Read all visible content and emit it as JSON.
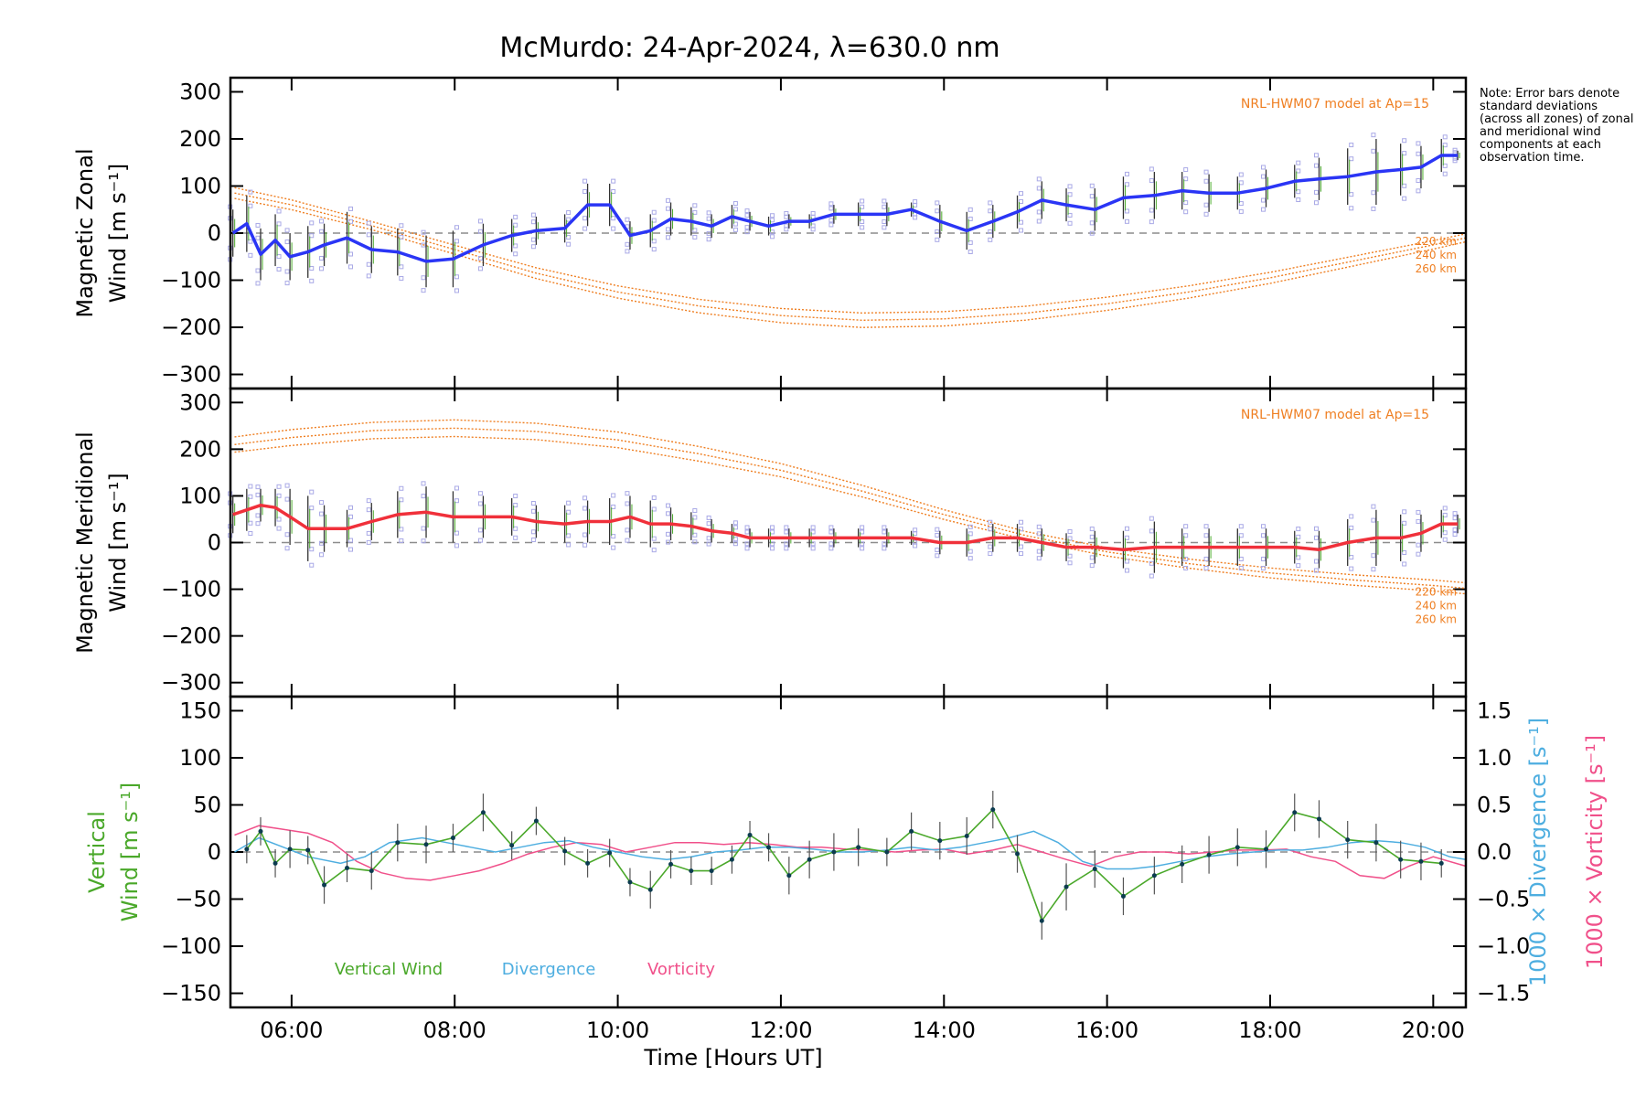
{
  "title": "McMurdo: 24-Apr-2024, λ=630.0 nm",
  "note": "Note: Error bars denote standard deviations (across all zones) of zonal and meridional wind components at each observation time.",
  "colors": {
    "zonal": "#2a35f5",
    "meridional": "#f0303a",
    "model": "#ef7f22",
    "vertical": "#4aa82a",
    "divergence": "#4eaee0",
    "vorticity": "#f0508a",
    "zone_squares": "#a9a9e6",
    "zero_line": "#8c8c8c"
  },
  "x_axis": {
    "label": "Time [Hours UT]",
    "range": [
      5.25,
      20.4
    ],
    "ticks": [
      {
        "v": 6,
        "label": "06:00"
      },
      {
        "v": 8,
        "label": "08:00"
      },
      {
        "v": 10,
        "label": "10:00"
      },
      {
        "v": 12,
        "label": "12:00"
      },
      {
        "v": 14,
        "label": "14:00"
      },
      {
        "v": 16,
        "label": "16:00"
      },
      {
        "v": 18,
        "label": "18:00"
      },
      {
        "v": 20,
        "label": "20:00"
      }
    ]
  },
  "chart_data": [
    {
      "id": "zonal",
      "type": "line",
      "ylabel_line1": "Magnetic Zonal",
      "ylabel_line2": "Wind [m s⁻¹]",
      "ylim": [
        -330,
        330
      ],
      "yticks": [
        300,
        200,
        100,
        0,
        -100,
        -200,
        -300
      ],
      "yticklabels": [
        "300",
        "200",
        "100",
        "0",
        "−100",
        "−200",
        "−300"
      ],
      "model_label": "NRL-HWM07 model at Ap=15",
      "model_altitudes": [
        "220 km",
        "240 km",
        "260 km"
      ],
      "series": [
        {
          "kind": "observed",
          "x": [
            5.28,
            5.45,
            5.62,
            5.8,
            5.98,
            6.2,
            6.4,
            6.68,
            6.98,
            7.3,
            7.65,
            7.98,
            8.35,
            8.7,
            9.0,
            9.35,
            9.63,
            9.9,
            10.15,
            10.4,
            10.65,
            10.9,
            11.15,
            11.4,
            11.62,
            11.85,
            12.1,
            12.35,
            12.65,
            12.95,
            13.3,
            13.6,
            13.95,
            14.28,
            14.6,
            14.9,
            15.2,
            15.5,
            15.85,
            16.2,
            16.58,
            16.92,
            17.25,
            17.6,
            17.95,
            18.3,
            18.6,
            18.95,
            19.3,
            19.6,
            19.85,
            20.1,
            20.3
          ],
          "y": [
            0,
            20,
            -45,
            -15,
            -50,
            -40,
            -25,
            -10,
            -35,
            -40,
            -60,
            -55,
            -25,
            -5,
            5,
            10,
            60,
            60,
            -5,
            5,
            30,
            25,
            15,
            35,
            25,
            15,
            25,
            25,
            40,
            40,
            40,
            50,
            25,
            5,
            25,
            45,
            70,
            60,
            50,
            75,
            80,
            90,
            85,
            85,
            95,
            110,
            115,
            120,
            130,
            135,
            140,
            165,
            165
          ],
          "err": [
            50,
            60,
            55,
            55,
            50,
            55,
            45,
            55,
            50,
            50,
            55,
            60,
            45,
            35,
            30,
            30,
            45,
            45,
            30,
            35,
            35,
            30,
            25,
            25,
            20,
            20,
            15,
            15,
            20,
            25,
            25,
            15,
            35,
            40,
            35,
            35,
            40,
            35,
            45,
            45,
            50,
            40,
            40,
            35,
            40,
            35,
            45,
            60,
            70,
            55,
            45,
            35,
            10
          ]
        },
        {
          "kind": "model",
          "x": [
            5.3,
            6.0,
            7.0,
            8.0,
            9.0,
            10.0,
            11.0,
            12.0,
            13.0,
            14.0,
            15.0,
            16.0,
            17.0,
            18.0,
            19.0,
            20.0,
            20.4
          ],
          "y": [
            85,
            60,
            15,
            -35,
            -85,
            -125,
            -155,
            -175,
            -185,
            -182,
            -170,
            -150,
            -125,
            -95,
            -60,
            -25,
            -10
          ]
        }
      ]
    },
    {
      "id": "meridional",
      "type": "line",
      "ylabel_line1": "Magnetic Meridional",
      "ylabel_line2": "Wind [m s⁻¹]",
      "ylim": [
        -330,
        330
      ],
      "yticks": [
        300,
        200,
        100,
        0,
        -100,
        -200,
        -300
      ],
      "yticklabels": [
        "300",
        "200",
        "100",
        "0",
        "−100",
        "−200",
        "−300"
      ],
      "model_label": "NRL-HWM07 model at Ap=15",
      "model_altitudes": [
        "220 km",
        "240 km",
        "260 km"
      ],
      "series": [
        {
          "kind": "observed",
          "x": [
            5.28,
            5.45,
            5.62,
            5.8,
            5.98,
            6.2,
            6.4,
            6.68,
            6.98,
            7.3,
            7.65,
            7.98,
            8.35,
            8.7,
            9.0,
            9.35,
            9.63,
            9.9,
            10.15,
            10.4,
            10.65,
            10.9,
            11.15,
            11.4,
            11.62,
            11.85,
            12.1,
            12.35,
            12.65,
            12.95,
            13.3,
            13.6,
            13.95,
            14.28,
            14.6,
            14.9,
            15.2,
            15.5,
            15.85,
            16.2,
            16.58,
            16.92,
            17.25,
            17.6,
            17.95,
            18.3,
            18.6,
            18.95,
            19.3,
            19.6,
            19.85,
            20.1,
            20.3
          ],
          "y": [
            60,
            70,
            80,
            75,
            55,
            30,
            30,
            30,
            45,
            60,
            65,
            55,
            55,
            55,
            45,
            40,
            45,
            45,
            55,
            40,
            40,
            35,
            25,
            20,
            10,
            10,
            10,
            10,
            10,
            10,
            10,
            10,
            0,
            0,
            10,
            10,
            0,
            -10,
            -10,
            -15,
            -10,
            -10,
            -10,
            -10,
            -10,
            -10,
            -15,
            0,
            10,
            10,
            20,
            40,
            40
          ],
          "err": [
            40,
            45,
            35,
            40,
            60,
            70,
            50,
            40,
            40,
            50,
            55,
            55,
            45,
            40,
            35,
            40,
            45,
            50,
            45,
            50,
            35,
            30,
            25,
            20,
            20,
            20,
            20,
            20,
            20,
            20,
            20,
            15,
            25,
            30,
            30,
            30,
            30,
            30,
            35,
            40,
            55,
            40,
            40,
            40,
            40,
            35,
            40,
            50,
            60,
            50,
            40,
            30,
            20
          ]
        },
        {
          "kind": "model",
          "x": [
            5.3,
            6.0,
            7.0,
            8.0,
            9.0,
            10.0,
            11.0,
            12.0,
            13.0,
            14.0,
            15.0,
            16.0,
            17.0,
            18.0,
            19.0,
            20.0,
            20.4
          ],
          "y": [
            210,
            225,
            240,
            245,
            238,
            220,
            190,
            155,
            110,
            60,
            15,
            -20,
            -45,
            -65,
            -80,
            -92,
            -98
          ]
        }
      ]
    },
    {
      "id": "vertical",
      "type": "line",
      "ylabel_line1": "Vertical",
      "ylabel_line2": "Wind [m s⁻¹]",
      "ylim": [
        -165,
        165
      ],
      "yticks": [
        150,
        100,
        50,
        0,
        -50,
        -100,
        -150
      ],
      "yticklabels": [
        "150",
        "100",
        "50",
        "0",
        "−50",
        "−100",
        "−150"
      ],
      "y2label_divergence": "1000 × Divergence [s⁻¹]",
      "y2label_vorticity": "1000 × Vorticity [s⁻¹]",
      "y2ticks": [
        1.5,
        1.0,
        0.5,
        0.0,
        -0.5,
        -1.0,
        -1.5
      ],
      "y2ticklabels": [
        "1.5",
        "1.0",
        "0.5",
        "0.0",
        "−0.5",
        "−1.0",
        "−1.5"
      ],
      "legend": [
        "Vertical Wind",
        "Divergence",
        "Vorticity"
      ],
      "series": [
        {
          "name": "Vertical Wind",
          "x": [
            5.45,
            5.62,
            5.8,
            5.98,
            6.2,
            6.4,
            6.68,
            6.98,
            7.3,
            7.65,
            7.98,
            8.35,
            8.7,
            9.0,
            9.35,
            9.63,
            9.9,
            10.15,
            10.4,
            10.65,
            10.9,
            11.15,
            11.4,
            11.62,
            11.85,
            12.1,
            12.35,
            12.65,
            12.95,
            13.3,
            13.6,
            13.95,
            14.28,
            14.6,
            14.9,
            15.2,
            15.5,
            15.85,
            16.2,
            16.58,
            16.92,
            17.25,
            17.6,
            17.95,
            18.3,
            18.6,
            18.95,
            19.3,
            19.6,
            19.85,
            20.1
          ],
          "y": [
            3,
            22,
            -12,
            3,
            2,
            -35,
            -17,
            -20,
            10,
            8,
            15,
            42,
            7,
            33,
            1,
            -12,
            -1,
            -32,
            -40,
            -13,
            -20,
            -20,
            -8,
            18,
            5,
            -25,
            -8,
            0,
            5,
            0,
            22,
            12,
            17,
            45,
            -2,
            -73,
            -37,
            -18,
            -47,
            -25,
            -13,
            -3,
            5,
            3,
            42,
            35,
            13,
            10,
            -8,
            -10,
            -12
          ],
          "err": [
            15,
            15,
            15,
            20,
            15,
            20,
            15,
            20,
            20,
            20,
            15,
            20,
            15,
            15,
            15,
            15,
            15,
            15,
            20,
            15,
            15,
            15,
            15,
            15,
            15,
            20,
            20,
            20,
            20,
            15,
            20,
            20,
            20,
            20,
            20,
            20,
            25,
            20,
            20,
            20,
            20,
            20,
            20,
            20,
            20,
            20,
            20,
            20,
            20,
            20,
            15
          ]
        },
        {
          "name": "Divergence",
          "x": [
            5.3,
            5.6,
            5.9,
            6.2,
            6.6,
            6.9,
            7.2,
            7.6,
            7.9,
            8.2,
            8.5,
            8.8,
            9.1,
            9.4,
            9.7,
            10.0,
            10.3,
            10.6,
            10.9,
            11.2,
            11.5,
            11.8,
            12.1,
            12.4,
            12.7,
            13.0,
            13.3,
            13.6,
            13.9,
            14.2,
            14.5,
            14.8,
            15.1,
            15.4,
            15.7,
            16.0,
            16.3,
            16.6,
            16.9,
            17.2,
            17.5,
            17.8,
            18.1,
            18.4,
            18.7,
            19.0,
            19.3,
            19.6,
            19.9,
            20.2,
            20.4
          ],
          "y": [
            0.0,
            0.15,
            0.05,
            -0.05,
            -0.12,
            -0.05,
            0.1,
            0.15,
            0.1,
            0.05,
            0.0,
            0.05,
            0.1,
            0.12,
            0.05,
            0.0,
            -0.05,
            -0.08,
            -0.05,
            0.0,
            0.02,
            0.05,
            0.05,
            0.03,
            0.0,
            0.0,
            0.02,
            0.05,
            0.02,
            0.05,
            0.1,
            0.15,
            0.22,
            0.1,
            -0.1,
            -0.18,
            -0.18,
            -0.15,
            -0.1,
            -0.05,
            -0.02,
            0.0,
            0.02,
            0.02,
            0.05,
            0.1,
            0.12,
            0.1,
            0.05,
            -0.05,
            -0.08
          ]
        },
        {
          "name": "Vorticity",
          "x": [
            5.3,
            5.6,
            5.9,
            6.2,
            6.5,
            6.8,
            7.1,
            7.4,
            7.7,
            8.0,
            8.3,
            8.6,
            8.9,
            9.2,
            9.5,
            9.8,
            10.1,
            10.4,
            10.7,
            11.0,
            11.3,
            11.6,
            11.9,
            12.2,
            12.5,
            12.8,
            13.1,
            13.4,
            13.7,
            14.0,
            14.3,
            14.6,
            14.9,
            15.2,
            15.5,
            15.8,
            16.1,
            16.4,
            16.7,
            17.0,
            17.3,
            17.6,
            17.9,
            18.2,
            18.5,
            18.8,
            19.1,
            19.4,
            19.7,
            20.0,
            20.4
          ],
          "y": [
            0.18,
            0.28,
            0.24,
            0.2,
            0.1,
            -0.1,
            -0.22,
            -0.28,
            -0.3,
            -0.25,
            -0.2,
            -0.12,
            -0.02,
            0.05,
            0.1,
            0.08,
            0.0,
            0.05,
            0.1,
            0.1,
            0.08,
            0.1,
            0.08,
            0.05,
            0.05,
            0.03,
            0.02,
            0.0,
            0.02,
            0.03,
            -0.02,
            0.02,
            0.08,
            0.0,
            -0.08,
            -0.15,
            -0.05,
            0.0,
            0.0,
            -0.02,
            0.0,
            0.02,
            0.02,
            0.03,
            -0.05,
            -0.1,
            -0.25,
            -0.28,
            -0.15,
            -0.05,
            -0.15
          ]
        }
      ]
    }
  ]
}
